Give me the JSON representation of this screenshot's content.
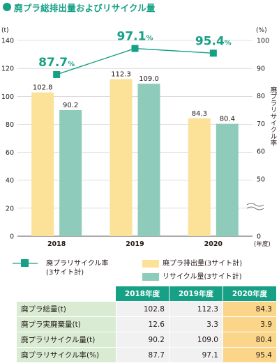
{
  "title": "廃プラ総排出量およびリサイクル量",
  "chart_data": {
    "type": "bar",
    "categories": [
      "2018",
      "2019",
      "2020"
    ],
    "x_unit": "(年度)",
    "y_left": {
      "unit": "(t)",
      "ticks": [
        0,
        20,
        40,
        60,
        80,
        100,
        120,
        140
      ],
      "range": [
        0,
        140
      ]
    },
    "y_right": {
      "unit": "(%)",
      "label": "廃プラリサイクル率",
      "ticks": [
        0,
        50,
        60,
        70,
        80,
        90,
        100
      ],
      "range": [
        0,
        100
      ],
      "break_below": 50
    },
    "series": [
      {
        "name": "廃プラ排出量(3サイト計)",
        "type": "bar",
        "axis": "left",
        "color": "#fce199",
        "values": [
          102.8,
          112.3,
          84.3
        ],
        "labels": [
          "102.8",
          "112.3",
          "84.3"
        ]
      },
      {
        "name": "リサイクル量(3サイト計)",
        "type": "bar",
        "axis": "left",
        "color": "#8ecbba",
        "values": [
          90.2,
          109.0,
          80.4
        ],
        "labels": [
          "90.2",
          "109.0",
          "80.4"
        ]
      },
      {
        "name": "廃プラリサイクル率\n(3サイト計)",
        "type": "line",
        "axis": "right",
        "color": "#16a085",
        "values": [
          87.7,
          97.1,
          95.4
        ],
        "labels": [
          "87.7",
          "97.1",
          "95.4"
        ],
        "label_unit": "%"
      }
    ]
  },
  "table": {
    "headers": [
      "2018年度",
      "2019年度",
      "2020年度"
    ],
    "rows": [
      {
        "label": "廃プラ総量(t)",
        "values": [
          "102.8",
          "112.3",
          "84.3"
        ]
      },
      {
        "label": "廃プラ実廃棄量(t)",
        "values": [
          "12.6",
          "3.3",
          "3.9"
        ]
      },
      {
        "label": "廃プラリサイクル量(t)",
        "values": [
          "90.2",
          "109.0",
          "80.4"
        ]
      },
      {
        "label": "廃プラリサイクル率(%)",
        "values": [
          "87.7",
          "97.1",
          "95.4"
        ]
      }
    ]
  }
}
